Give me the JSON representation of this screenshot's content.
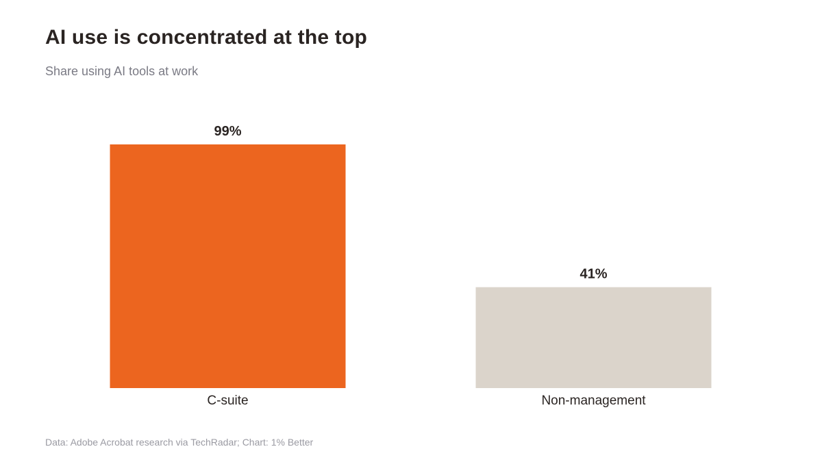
{
  "title": "AI use is concentrated at the top",
  "subtitle": "Share using AI tools at work",
  "source": "Data: Adobe Acrobat research via TechRadar; Chart: 1% Better",
  "colors": {
    "highlight": "#ec651f",
    "muted": "#dbd4cb",
    "label_text": "#2a2422",
    "category_text": "#2a2422"
  },
  "chart_data": {
    "type": "bar",
    "title": "AI use is concentrated at the top",
    "subtitle": "Share using AI tools at work",
    "categories": [
      "C-suite",
      "Non-management"
    ],
    "values": [
      99,
      41
    ],
    "value_labels": [
      "99%",
      "41%"
    ],
    "value_suffix": "%",
    "ylim": [
      0,
      100
    ],
    "grid": false,
    "legend": "none",
    "bar_colors": [
      "#ec651f",
      "#dbd4cb"
    ]
  }
}
